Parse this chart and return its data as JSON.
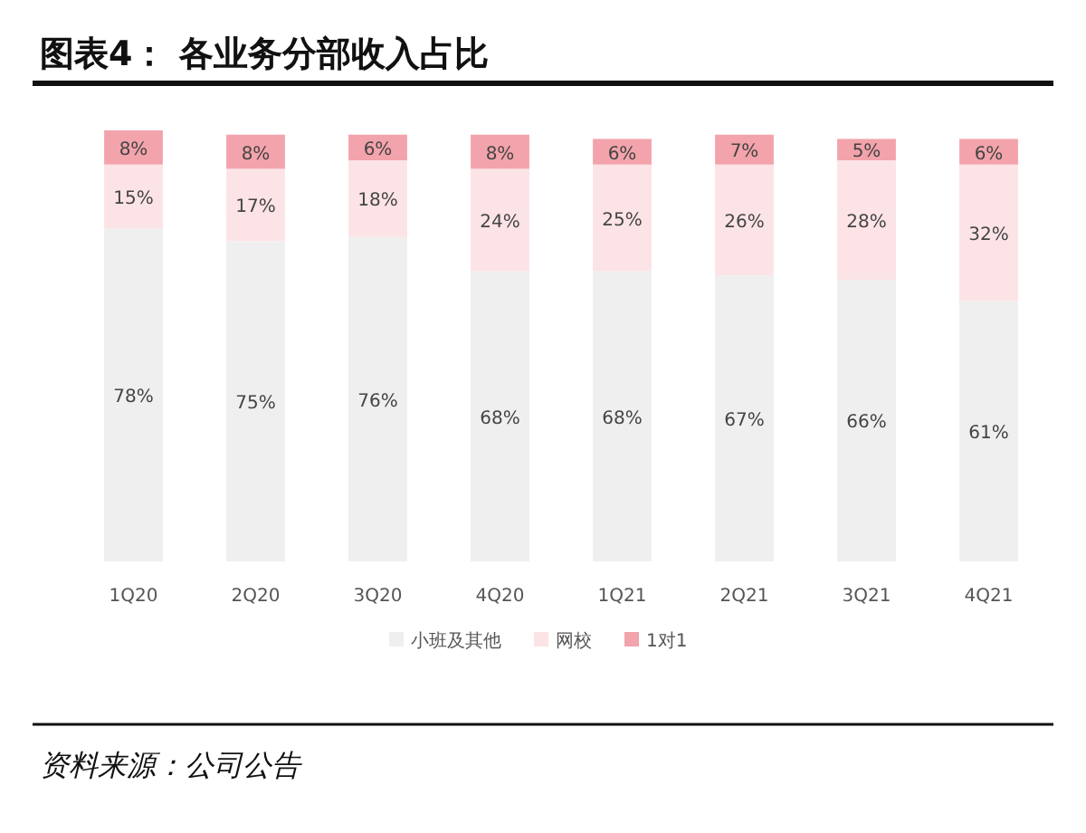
{
  "chart_data": {
    "type": "bar",
    "stacked": true,
    "tick_labels": "x",
    "legend": "bottom",
    "title": "图表4：  各业务分部收入占比",
    "categories": [
      "1Q20",
      "2Q20",
      "3Q20",
      "4Q20",
      "1Q21",
      "2Q21",
      "3Q21",
      "4Q21"
    ],
    "series": [
      {
        "name": "小班及其他",
        "color": "#efefef",
        "values": [
          78,
          75,
          76,
          68,
          68,
          67,
          66,
          61
        ],
        "value_labels": [
          "78%",
          "75%",
          "76%",
          "68%",
          "68%",
          "67%",
          "66%",
          "61%"
        ]
      },
      {
        "name": "网校",
        "color": "#fce3e6",
        "values": [
          15,
          17,
          18,
          24,
          25,
          26,
          28,
          32
        ],
        "value_labels": [
          "15%",
          "17%",
          "18%",
          "24%",
          "25%",
          "26%",
          "28%",
          "32%"
        ]
      },
      {
        "name": "1对1",
        "color": "#f3a3ab",
        "values": [
          8,
          8,
          6,
          8,
          6,
          7,
          5,
          6
        ],
        "value_labels": [
          "8%",
          "8%",
          "6%",
          "8%",
          "6%",
          "7%",
          "5%",
          "6%"
        ]
      }
    ],
    "annotations": [
      "资料来源：公司公告"
    ]
  }
}
